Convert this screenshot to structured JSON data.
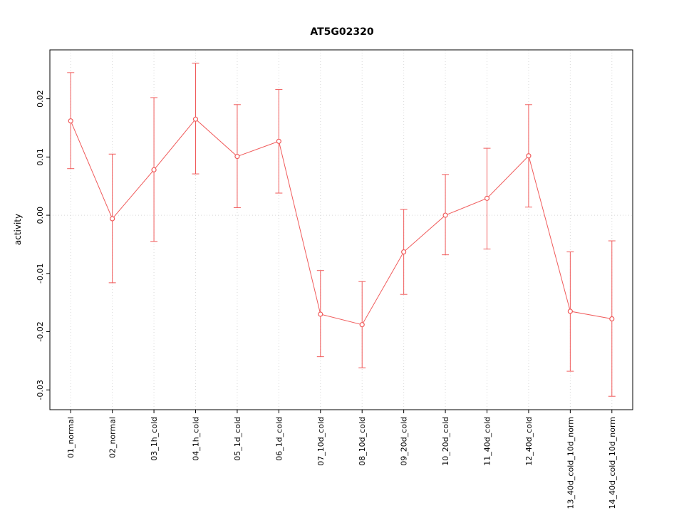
{
  "chart_data": {
    "type": "line",
    "title": "AT5G02320",
    "xlabel": "",
    "ylabel": "activity",
    "categories": [
      "01_normal",
      "02_normal",
      "03_1h_cold",
      "04_1h_cold",
      "05_1d_cold",
      "06_1d_cold",
      "07_10d_cold",
      "08_10d_cold",
      "09_20d_cold",
      "10_20d_cold",
      "11_40d_cold",
      "12_40d_cold",
      "13_40d_cold_10d_norm",
      "14_40d_cold_10d_norm"
    ],
    "series": [
      {
        "name": "activity",
        "values": [
          0.0162,
          -0.0006,
          0.0078,
          0.0165,
          0.0101,
          0.0127,
          -0.017,
          -0.0188,
          -0.0063,
          0.0,
          0.0029,
          0.0102,
          -0.0165,
          -0.0178
        ],
        "upper": [
          0.0245,
          0.0105,
          0.0202,
          0.0261,
          0.019,
          0.0216,
          -0.0095,
          -0.0114,
          0.001,
          0.007,
          0.0115,
          0.019,
          -0.0063,
          -0.0044
        ],
        "lower": [
          0.008,
          -0.0116,
          -0.0045,
          0.0071,
          0.0013,
          0.0038,
          -0.0243,
          -0.0262,
          -0.0136,
          -0.0068,
          -0.0058,
          0.0014,
          -0.0268,
          -0.0311
        ]
      }
    ],
    "ylim": [
      -0.0334,
      0.0284
    ],
    "yticks": [
      -0.03,
      -0.02,
      -0.01,
      0.0,
      0.01,
      0.02
    ],
    "grid": "dotted vertical line at each category; dotted horizontal line at y=0",
    "legend": "none",
    "line_color": "#f05b5b",
    "grid_color": "#d8d8d8",
    "axis_color": "#000000",
    "background_color": "#ffffff"
  }
}
